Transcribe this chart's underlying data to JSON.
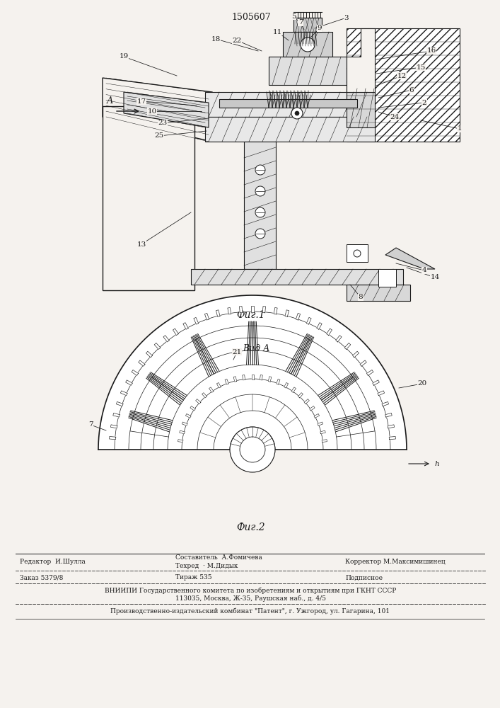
{
  "patent_number": "1505607",
  "fig1_caption": "Фиг.1",
  "fig2_caption": "Фиг.2",
  "view_label": "Вид А",
  "arrow_label": "А",
  "background_color": "#f5f2ee",
  "line_color": "#1a1a1a",
  "footer_editor": "Редактор  И.Шулла",
  "footer_order": "Заказ 5379/8",
  "footer_composer": "Составитель  А.Фомичева",
  "footer_tech": "Техред  · М.Дидык",
  "footer_circ": "Тираж 535",
  "footer_corrector": "Корректор М.Максимишинец",
  "footer_sub": "Подписное",
  "footer_vniip1": "ВНИИПИ Государственного комитета по изобретениям и открытиям при ГКНТ СССР",
  "footer_vniip2": "113035, Москва, Ж-35, Раушская наб., д. 4/5",
  "footer_prod": "Производственно-издательский комбинат \"Патент\", г. Ужгород, ул. Гагарина, 101"
}
